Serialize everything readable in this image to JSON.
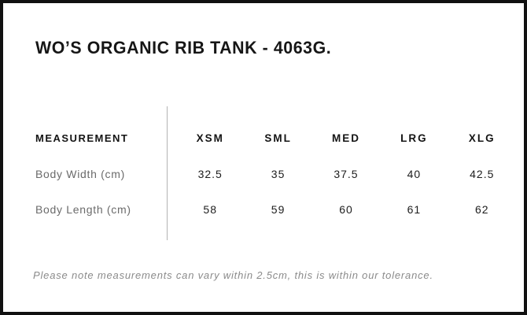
{
  "page": {
    "title": "WO’S ORGANIC RIB TANK - 4063G.",
    "note": "Please note measurements can vary within 2.5cm, this is within our tolerance."
  },
  "size_chart": {
    "header_label": "MEASUREMENT",
    "sizes": [
      "XSM",
      "SML",
      "MED",
      "LRG",
      "XLG"
    ],
    "rows": [
      {
        "label": "Body Width (cm)",
        "values": [
          "32.5",
          "35",
          "37.5",
          "40",
          "42.5"
        ]
      },
      {
        "label": "Body Length (cm)",
        "values": [
          "58",
          "59",
          "60",
          "61",
          "62"
        ]
      }
    ]
  },
  "colors": {
    "frame_border": "#111111",
    "background": "#ffffff",
    "heading_text": "#161616",
    "table_header_text": "#141414",
    "row_label_text": "#6b6b6b",
    "value_text": "#1d1d1d",
    "divider": "#b3b3b3",
    "note_text": "#8b8b8b"
  }
}
